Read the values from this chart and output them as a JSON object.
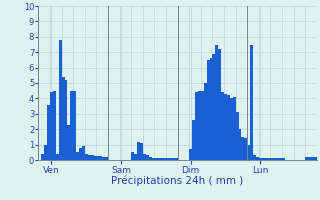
{
  "title": "Précipitations 24h ( mm )",
  "background_color": "#dff2f2",
  "grid_color": "#b8d8d8",
  "bar_color": "#1a5fd4",
  "ylim": [
    0,
    10
  ],
  "yticks": [
    0,
    1,
    2,
    3,
    4,
    5,
    6,
    7,
    8,
    9,
    10
  ],
  "day_labels": [
    "Ven",
    "Sam",
    "Dim",
    "Lun"
  ],
  "day_positions": [
    4,
    28,
    52,
    76
  ],
  "values": [
    0.0,
    0.4,
    1.0,
    3.6,
    4.4,
    4.5,
    0.4,
    7.8,
    5.4,
    5.2,
    2.3,
    4.5,
    4.5,
    0.5,
    0.8,
    0.9,
    0.4,
    0.35,
    0.3,
    0.25,
    0.25,
    0.25,
    0.2,
    0.2,
    0.0,
    0.0,
    0.0,
    0.0,
    0.0,
    0.0,
    0.0,
    0.0,
    0.5,
    0.4,
    1.2,
    1.1,
    0.4,
    0.3,
    0.2,
    0.15,
    0.15,
    0.1,
    0.1,
    0.1,
    0.1,
    0.1,
    0.1,
    0.1,
    0.0,
    0.0,
    0.0,
    0.0,
    0.7,
    2.6,
    4.4,
    4.5,
    4.5,
    5.0,
    6.5,
    6.6,
    6.9,
    7.5,
    7.2,
    4.4,
    4.3,
    4.2,
    4.0,
    4.1,
    3.1,
    2.0,
    1.5,
    1.4,
    1.0,
    7.5,
    0.3,
    0.2,
    0.15,
    0.15,
    0.15,
    0.15,
    0.15,
    0.15,
    0.15,
    0.1,
    0.1,
    0.0,
    0.0,
    0.0,
    0.0,
    0.0,
    0.0,
    0.0,
    0.2,
    0.2,
    0.2,
    0.2
  ],
  "n_bars": 96,
  "figsize": [
    3.2,
    2.0
  ],
  "dpi": 100
}
